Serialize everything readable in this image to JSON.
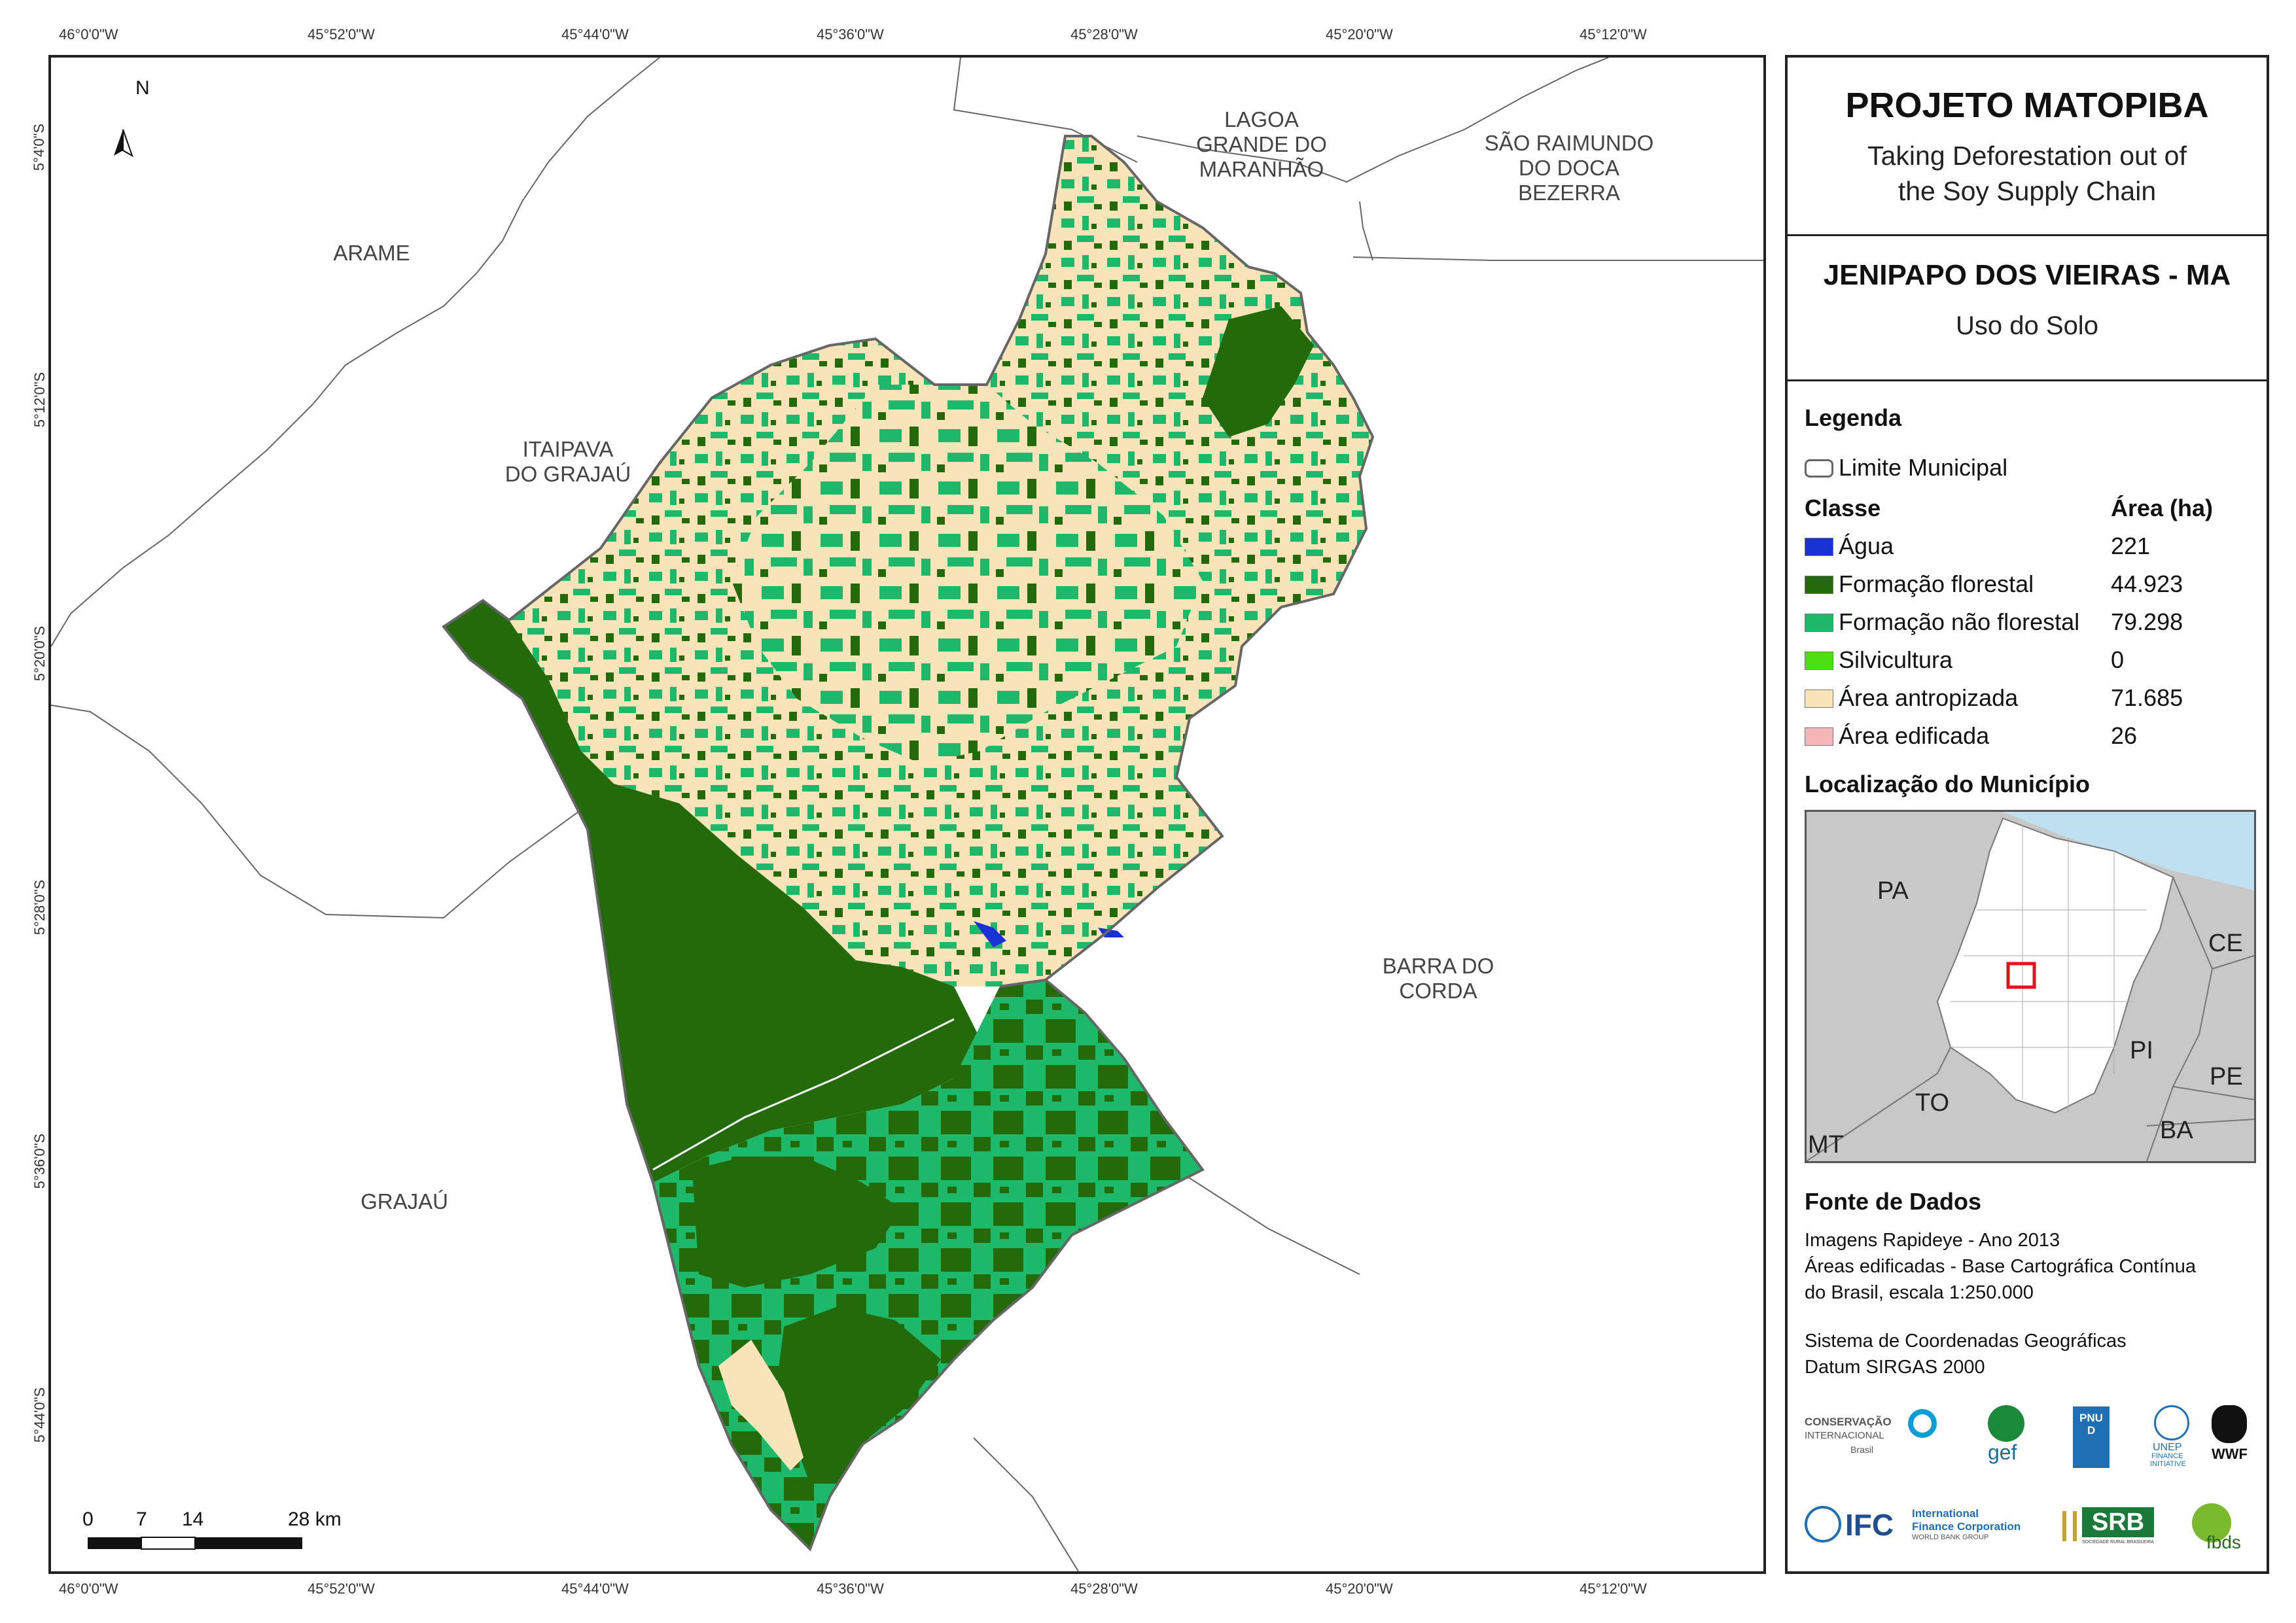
{
  "map": {
    "coords_top": [
      "46°0'0\"W",
      "45°52'0\"W",
      "45°44'0\"W",
      "45°36'0\"W",
      "45°28'0\"W",
      "45°20'0\"W",
      "45°12'0\"W"
    ],
    "coords_bottom": [
      "46°0'0\"W",
      "45°52'0\"W",
      "45°44'0\"W",
      "45°36'0\"W",
      "45°28'0\"W",
      "45°20'0\"W",
      "45°12'0\"W"
    ],
    "coords_left": [
      "5°4'0\"S",
      "5°12'0\"S",
      "5°20'0\"S",
      "5°28'0\"S",
      "5°36'0\"S",
      "5°44'0\"S"
    ],
    "north": "N",
    "municipalities": {
      "arame": "ARAME",
      "lagoa": "LAGOA\nGRANDE DO\nMARANHÃO",
      "sao_raimundo": "SÃO RAIMUNDO\nDO DOCA\nBEZERRA",
      "itaipava": "ITAIPAVA\nDO GRAJAÚ",
      "barra": "BARRA DO\nCORDA",
      "grajau": "GRAJAÚ"
    },
    "scale": {
      "labels": [
        "0",
        "7",
        "14",
        "28 km"
      ]
    },
    "colors": {
      "forest": "#236b0a",
      "nonforest": "#1db86a",
      "anthropized": "#f8e4b8",
      "water": "#1932d6",
      "built": "#f4b6b8",
      "silvicultura": "#4ce010"
    }
  },
  "panel": {
    "project": "PROJETO MATOPIBA",
    "subtitle_1": "Taking Deforestation out of",
    "subtitle_2": "the Soy Supply Chain",
    "municipio": "JENIPAPO DOS VIEIRAS - MA",
    "theme": "Uso do Solo",
    "legend_header": "Legenda",
    "limit_label": "Limite Municipal",
    "class_header": "Classe",
    "area_header": "Área (ha)",
    "classes": [
      {
        "label": "Água",
        "value": "221",
        "color": "#1932d6"
      },
      {
        "label": "Formação florestal",
        "value": "44.923",
        "color": "#236b0a"
      },
      {
        "label": "Formação não florestal",
        "value": "79.298",
        "color": "#1db86a"
      },
      {
        "label": "Silvicultura",
        "value": "0",
        "color": "#4ce010"
      },
      {
        "label": "Área antropizada",
        "value": "71.685",
        "color": "#f8e4b8"
      },
      {
        "label": "Área edificada",
        "value": "26",
        "color": "#f4b6b8"
      }
    ],
    "location_header": "Localização do Município",
    "inset_labels": {
      "pa": "PA",
      "ce": "CE",
      "pi": "PI",
      "to": "TO",
      "pe": "PE",
      "ba": "BA",
      "mt": "MT"
    },
    "sources_header": "Fonte de Dados",
    "sources": [
      "Imagens Rapideye - Ano 2013",
      "Áreas edificadas - Base Cartográfica Contínua",
      "do Brasil, escala 1:250.000"
    ],
    "crs": [
      "Sistema de Coordenadas Geográficas",
      "Datum SIRGAS 2000"
    ],
    "logos": {
      "ci_1": "CONSERVAÇÃO",
      "ci_2": "INTERNACIONAL",
      "ci_3": "Brasil",
      "gef": "gef",
      "pnud": "PNUD",
      "unep_1": "UNEP",
      "unep_2": "FINANCE",
      "unep_3": "INITIATIVE",
      "wwf": "WWF",
      "ifc": "IFC",
      "ifc_1": "International",
      "ifc_2": "Finance Corporation",
      "ifc_3": "WORLD BANK GROUP",
      "srb": "SRB",
      "srb_sub": "SOCIEDADE RURAL BRASILEIRA",
      "fbds": "fbds"
    }
  }
}
